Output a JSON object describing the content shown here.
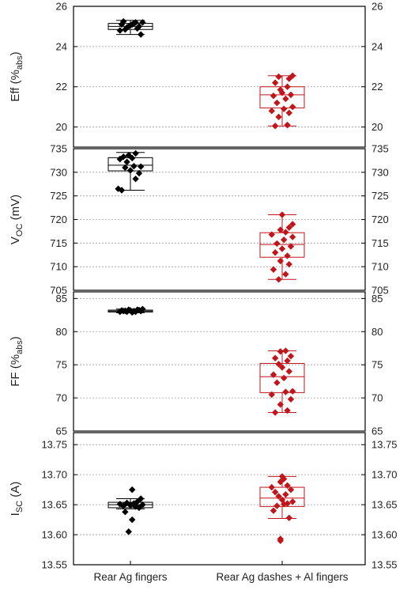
{
  "colors": {
    "group1": "#000000",
    "group2": "#c0151b",
    "grid": "#9a9a9a",
    "axis": "#000000"
  },
  "chart_data": [
    {
      "type": "box",
      "ylabel": "Eff (%abs)",
      "ylabel_main": "Eff (%",
      "ylabel_sub": "abs",
      "ylabel_tail": ")",
      "ylim": [
        19,
        26
      ],
      "yticks": [
        20,
        22,
        24,
        26
      ],
      "tick_format": "0",
      "grid": true,
      "categories": [
        "Rear Ag fingers",
        "Rear Ag dashes + Al fingers"
      ],
      "boxes": [
        {
          "whisker_low": 24.6,
          "q1": 24.85,
          "median": 25.0,
          "q3": 25.15,
          "whisker_high": 25.3
        },
        {
          "whisker_low": 20.05,
          "q1": 20.95,
          "median": 21.6,
          "q3": 22.0,
          "whisker_high": 22.55
        }
      ],
      "points": [
        [
          [
            -3,
            24.85
          ],
          [
            -2,
            24.95
          ],
          [
            -1,
            25.0
          ],
          [
            0,
            25.05
          ],
          [
            1,
            25.1
          ],
          [
            2,
            25.15
          ],
          [
            3,
            25.2
          ],
          [
            -4,
            25.25
          ],
          [
            4,
            24.9
          ],
          [
            5,
            25.0
          ],
          [
            -5,
            25.1
          ],
          [
            6,
            24.6
          ],
          [
            -6,
            24.8
          ],
          [
            7,
            25.2
          ]
        ],
        [
          [
            -4,
            20.05
          ],
          [
            3,
            20.1
          ],
          [
            -2,
            20.5
          ],
          [
            4,
            20.7
          ],
          [
            -6,
            20.8
          ],
          [
            1,
            20.9
          ],
          [
            6,
            21.0
          ],
          [
            -3,
            21.2
          ],
          [
            2,
            21.4
          ],
          [
            -5,
            21.55
          ],
          [
            5,
            21.6
          ],
          [
            0,
            21.7
          ],
          [
            -1,
            21.85
          ],
          [
            3,
            22.0
          ],
          [
            -4,
            22.2
          ],
          [
            4,
            22.4
          ],
          [
            -2,
            22.5
          ],
          [
            6,
            22.55
          ]
        ]
      ]
    },
    {
      "type": "box",
      "ylabel": "VOC (mV)",
      "ylabel_main": "V",
      "ylabel_sub": "OC",
      "ylabel_tail": " (mV)",
      "ylim": [
        705,
        735
      ],
      "yticks": [
        705,
        710,
        715,
        720,
        725,
        730,
        735
      ],
      "tick_format": "0",
      "grid": true,
      "categories": [
        "Rear Ag fingers",
        "Rear Ag dashes + Al fingers"
      ],
      "boxes": [
        {
          "whisker_low": 726.2,
          "q1": 730.3,
          "median": 731.5,
          "q3": 733.1,
          "whisker_high": 734.2
        },
        {
          "whisker_low": 707.3,
          "q1": 712.0,
          "median": 714.7,
          "q3": 717.2,
          "whisker_high": 721.0
        }
      ],
      "points": [
        [
          [
            -5,
            726.2
          ],
          [
            -7,
            726.5
          ],
          [
            3,
            728.6
          ],
          [
            5,
            729.8
          ],
          [
            0,
            730.4
          ],
          [
            -3,
            731.0
          ],
          [
            2,
            731.3
          ],
          [
            6,
            731.2
          ],
          [
            -2,
            732.2
          ],
          [
            -6,
            732.8
          ],
          [
            1,
            733.0
          ],
          [
            -1,
            733.6
          ],
          [
            3,
            734.0
          ],
          [
            -4,
            733.3
          ]
        ],
        [
          [
            -2,
            707.3
          ],
          [
            2,
            708.4
          ],
          [
            -5,
            709.4
          ],
          [
            4,
            710.5
          ],
          [
            -1,
            711.2
          ],
          [
            3,
            712.3
          ],
          [
            -4,
            713.0
          ],
          [
            0,
            713.8
          ],
          [
            5,
            714.3
          ],
          [
            -3,
            714.9
          ],
          [
            1,
            715.7
          ],
          [
            6,
            716.3
          ],
          [
            -6,
            716.8
          ],
          [
            2,
            717.3
          ],
          [
            -1,
            717.8
          ],
          [
            4,
            718.3
          ],
          [
            6,
            719.0
          ],
          [
            0,
            721.0
          ]
        ]
      ]
    },
    {
      "type": "box",
      "ylabel": "FF (%abs)",
      "ylabel_main": "FF (%",
      "ylabel_sub": "abs",
      "ylabel_tail": ")",
      "ylim": [
        65,
        86
      ],
      "yticks": [
        65,
        70,
        75,
        80,
        85
      ],
      "tick_format": "0",
      "grid": true,
      "categories": [
        "Rear Ag fingers",
        "Rear Ag dashes + Al fingers"
      ],
      "boxes": [
        {
          "whisker_low": 82.85,
          "q1": 82.95,
          "median": 83.1,
          "q3": 83.25,
          "whisker_high": 83.4
        },
        {
          "whisker_low": 67.8,
          "q1": 70.8,
          "median": 73.2,
          "q3": 75.2,
          "whisker_high": 77.1
        }
      ],
      "points": [
        [
          [
            -6,
            83.0
          ],
          [
            -4,
            83.1
          ],
          [
            -2,
            83.0
          ],
          [
            0,
            83.2
          ],
          [
            2,
            83.1
          ],
          [
            4,
            83.3
          ],
          [
            6,
            83.1
          ],
          [
            -5,
            83.2
          ],
          [
            -1,
            83.3
          ],
          [
            1,
            82.9
          ],
          [
            3,
            83.0
          ],
          [
            5,
            83.25
          ],
          [
            7,
            83.4
          ],
          [
            -3,
            83.15
          ]
        ],
        [
          [
            -4,
            67.8
          ],
          [
            3,
            68.1
          ],
          [
            -1,
            69.0
          ],
          [
            5,
            69.8
          ],
          [
            -6,
            70.5
          ],
          [
            2,
            70.9
          ],
          [
            6,
            71.0
          ],
          [
            -3,
            72.3
          ],
          [
            1,
            73.0
          ],
          [
            -5,
            73.5
          ],
          [
            4,
            74.0
          ],
          [
            0,
            74.6
          ],
          [
            -2,
            75.1
          ],
          [
            3,
            75.6
          ],
          [
            -4,
            76.0
          ],
          [
            5,
            76.3
          ],
          [
            -1,
            77.0
          ],
          [
            2,
            77.1
          ]
        ]
      ]
    },
    {
      "type": "box",
      "ylabel": "ISC (A)",
      "ylabel_main": "I",
      "ylabel_sub": "SC",
      "ylabel_tail": " (A)",
      "ylim": [
        13.55,
        13.77
      ],
      "yticks": [
        13.55,
        13.6,
        13.65,
        13.7,
        13.75
      ],
      "tick_format": "2",
      "grid": true,
      "categories": [
        "Rear Ag fingers",
        "Rear Ag dashes + Al fingers"
      ],
      "boxes": [
        {
          "whisker_low": 13.643,
          "q1": 13.645,
          "median": 13.65,
          "q3": 13.654,
          "whisker_high": 13.66
        },
        {
          "whisker_low": 13.627,
          "q1": 13.647,
          "median": 13.661,
          "q3": 13.679,
          "whisker_high": 13.697
        }
      ],
      "points": [
        [
          [
            -1,
            13.605
          ],
          [
            1,
            13.625
          ],
          [
            -3,
            13.638
          ],
          [
            5,
            13.645
          ],
          [
            3,
            13.647
          ],
          [
            -4,
            13.648
          ],
          [
            0,
            13.649
          ],
          [
            7,
            13.65
          ],
          [
            -6,
            13.651
          ],
          [
            2,
            13.652
          ],
          [
            -2,
            13.653
          ],
          [
            4,
            13.655
          ],
          [
            6,
            13.66
          ],
          [
            1,
            13.675
          ]
        ],
        [
          [
            -1,
            13.59
          ],
          [
            -1,
            13.593
          ],
          [
            4,
            13.628
          ],
          [
            -5,
            13.64
          ],
          [
            -3,
            13.648
          ],
          [
            1,
            13.651
          ],
          [
            3,
            13.652
          ],
          [
            6,
            13.655
          ],
          [
            0,
            13.658
          ],
          [
            -2,
            13.664
          ],
          [
            2,
            13.667
          ],
          [
            -4,
            13.671
          ],
          [
            5,
            13.675
          ],
          [
            -6,
            13.679
          ],
          [
            3,
            13.682
          ],
          [
            -1,
            13.688
          ],
          [
            1,
            13.693
          ],
          [
            0,
            13.697
          ]
        ]
      ]
    }
  ]
}
